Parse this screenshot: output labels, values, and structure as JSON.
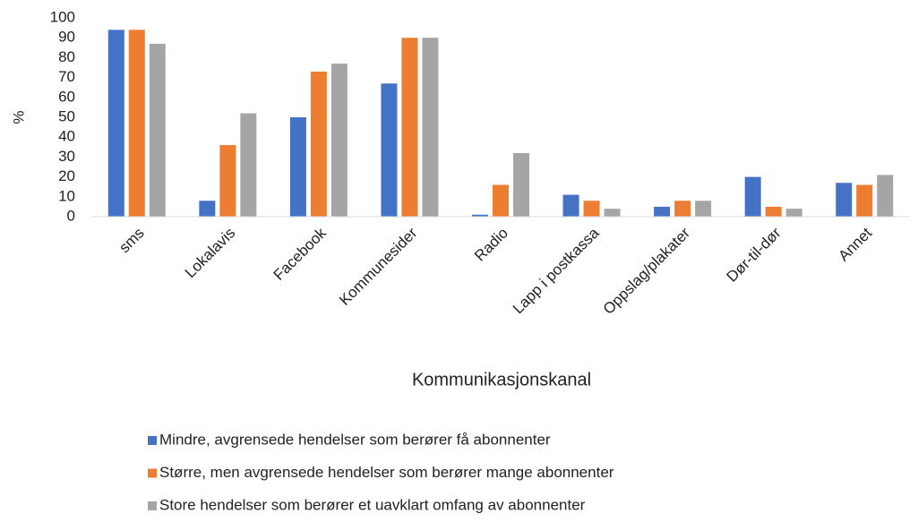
{
  "chart_data": {
    "type": "bar",
    "categories": [
      "sms",
      "Lokalavis",
      "Facebook",
      "Kommunesider",
      "Radio",
      "Lapp i postkassa",
      "Oppslag/plakater",
      "Dør-til-dør",
      "Annet"
    ],
    "series": [
      {
        "name": "Mindre, avgrensede hendelser som berører få abonnenter",
        "color": "#4472c4",
        "values": [
          94,
          8,
          50,
          67,
          1,
          11,
          5,
          20,
          17
        ]
      },
      {
        "name": "Større, men avgrensede hendelser som berører mange abonnenter",
        "color": "#ed7d31",
        "values": [
          94,
          36,
          73,
          90,
          16,
          8,
          8,
          5,
          16
        ]
      },
      {
        "name": "Store hendelser som berører et uavklart omfang av abonnenter",
        "color": "#a5a5a5",
        "values": [
          87,
          52,
          77,
          90,
          32,
          4,
          8,
          4,
          21
        ]
      }
    ],
    "ylabel": "%",
    "xlabel": "Kommunikasjonskanal",
    "ylim": [
      0,
      100
    ],
    "yticks": [
      0,
      10,
      20,
      30,
      40,
      50,
      60,
      70,
      80,
      90,
      100
    ],
    "grid": false,
    "legend": "bottom"
  }
}
